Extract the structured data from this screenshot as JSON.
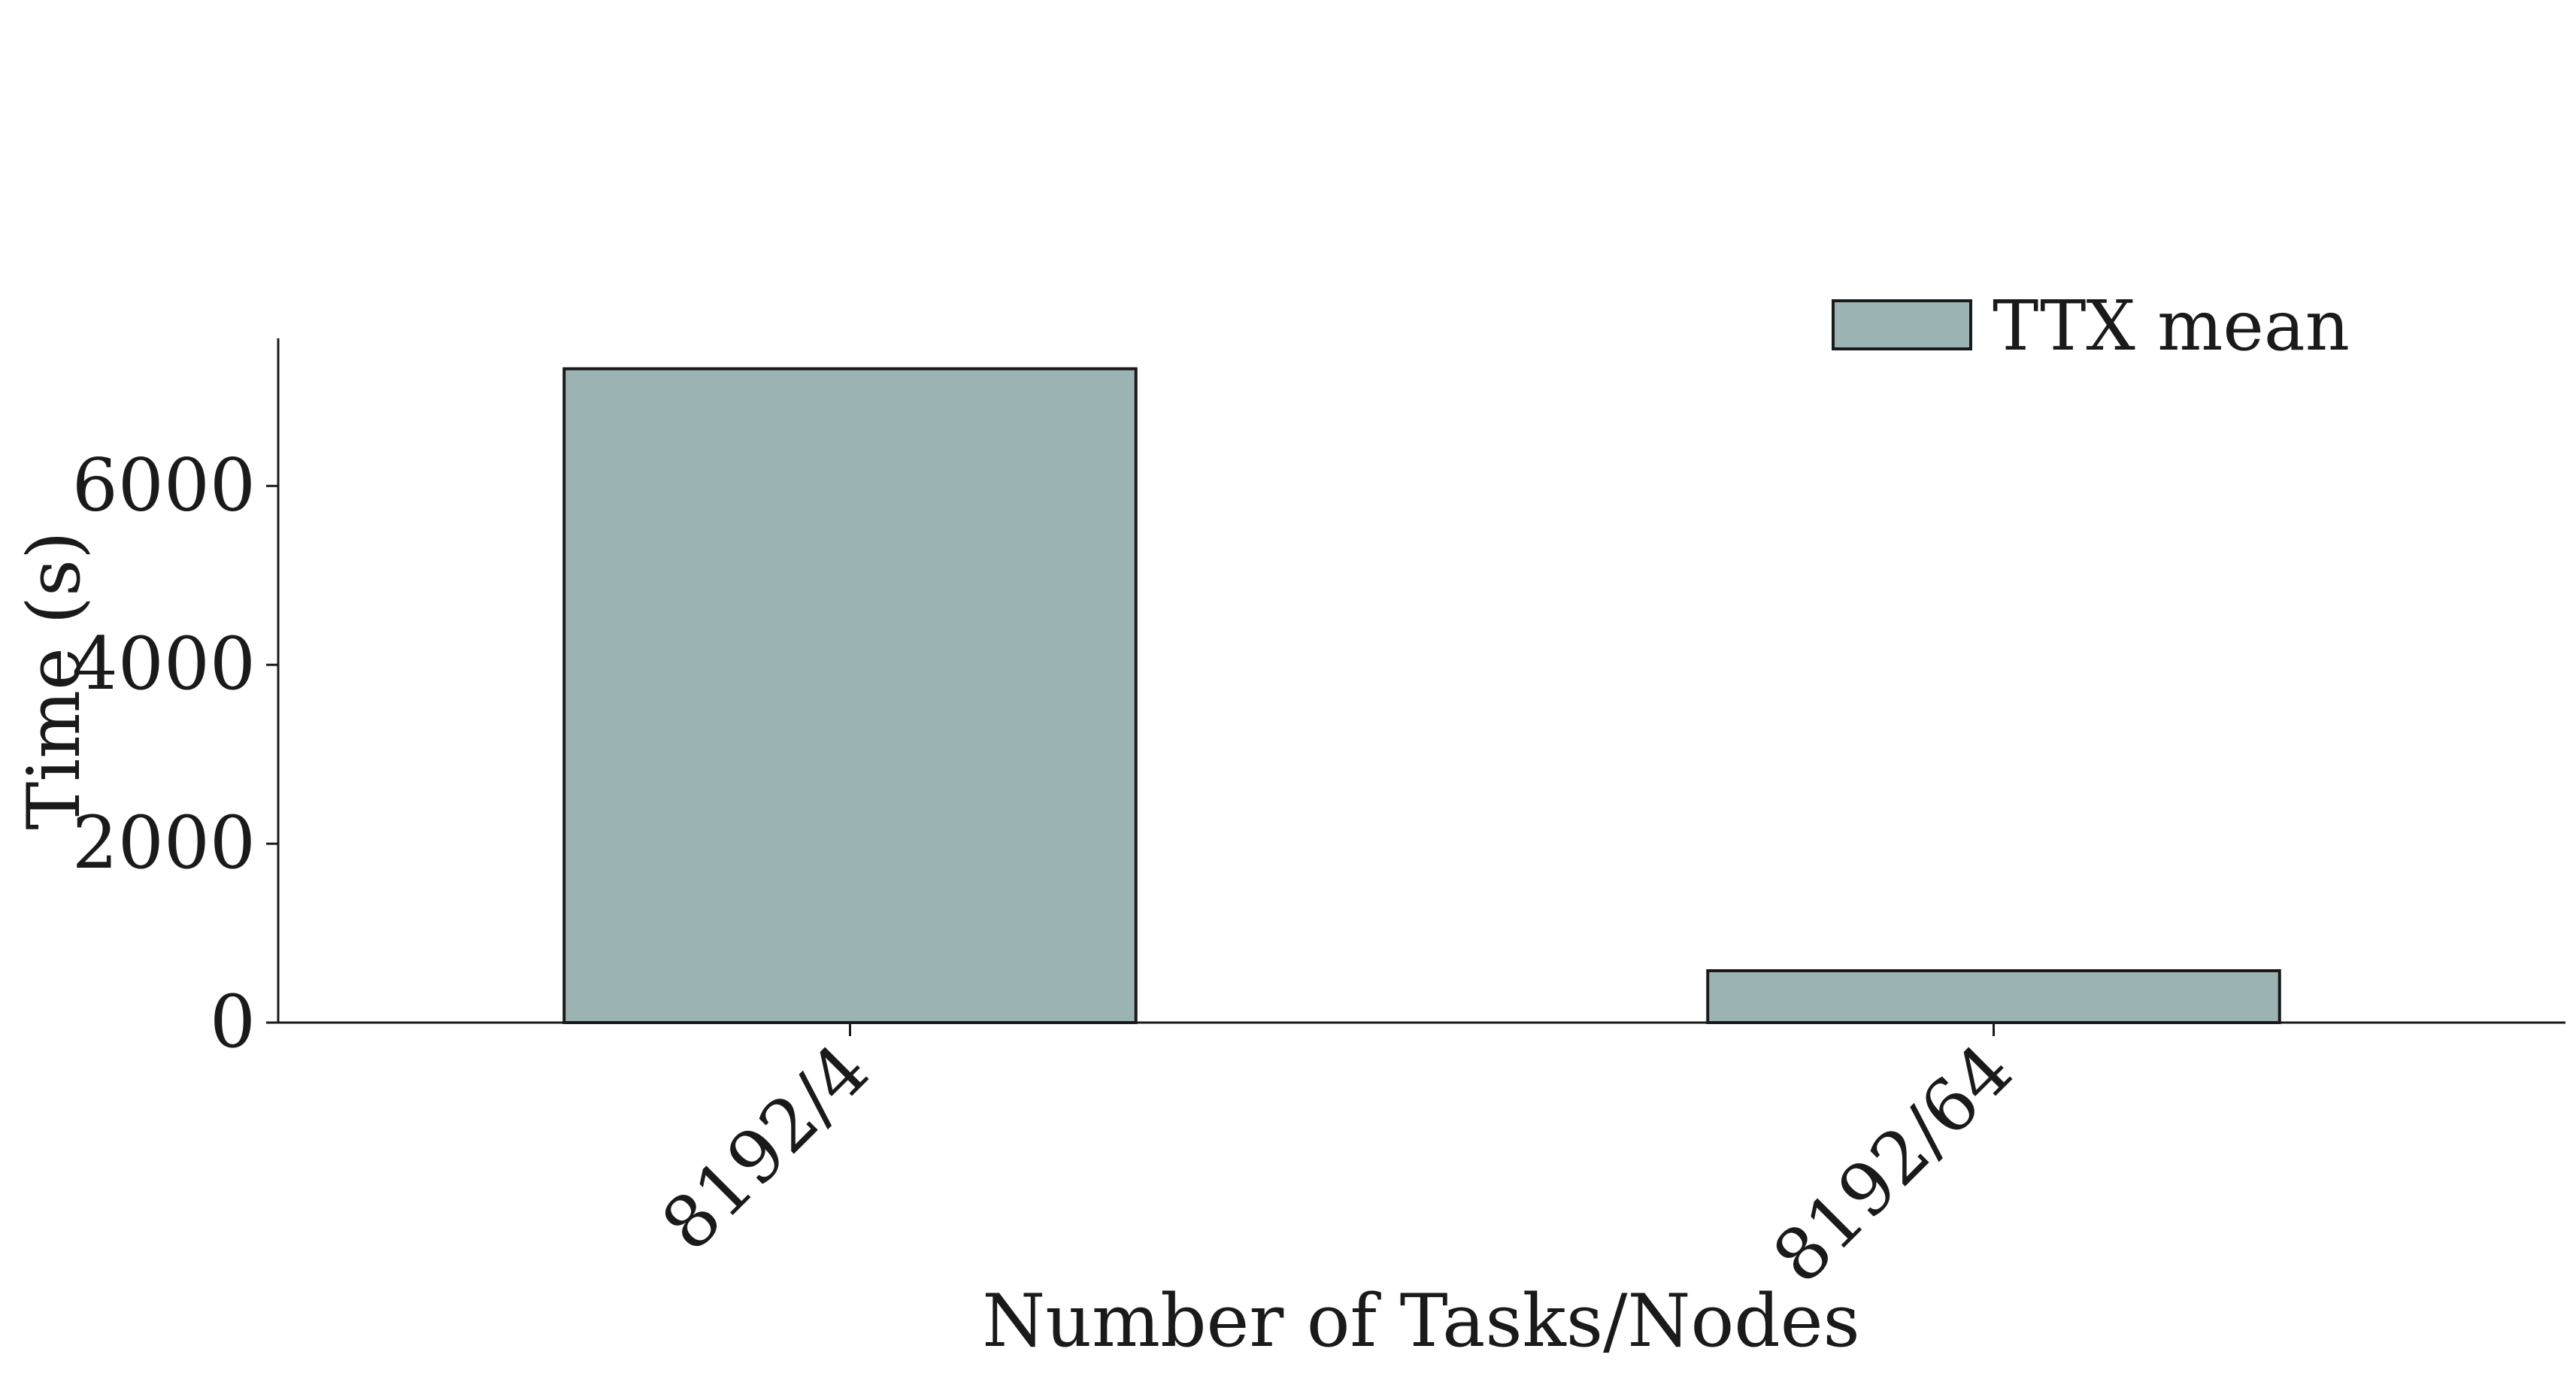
{
  "chart_data": {
    "type": "bar",
    "categories": [
      "8192/4",
      "8192/64"
    ],
    "series": [
      {
        "name": "TTX mean",
        "values": [
          7310,
          580
        ],
        "color": "#9bb3b3"
      }
    ],
    "xlabel": "Number of Tasks/Nodes",
    "ylabel": "Time (s)",
    "yticks": [
      0,
      2000,
      4000,
      6000
    ],
    "ylim": [
      0,
      7650
    ],
    "grid": false,
    "legend_position": "top-right",
    "xtick_rotation_deg": -45,
    "edge_color": "#1a1a1a"
  }
}
